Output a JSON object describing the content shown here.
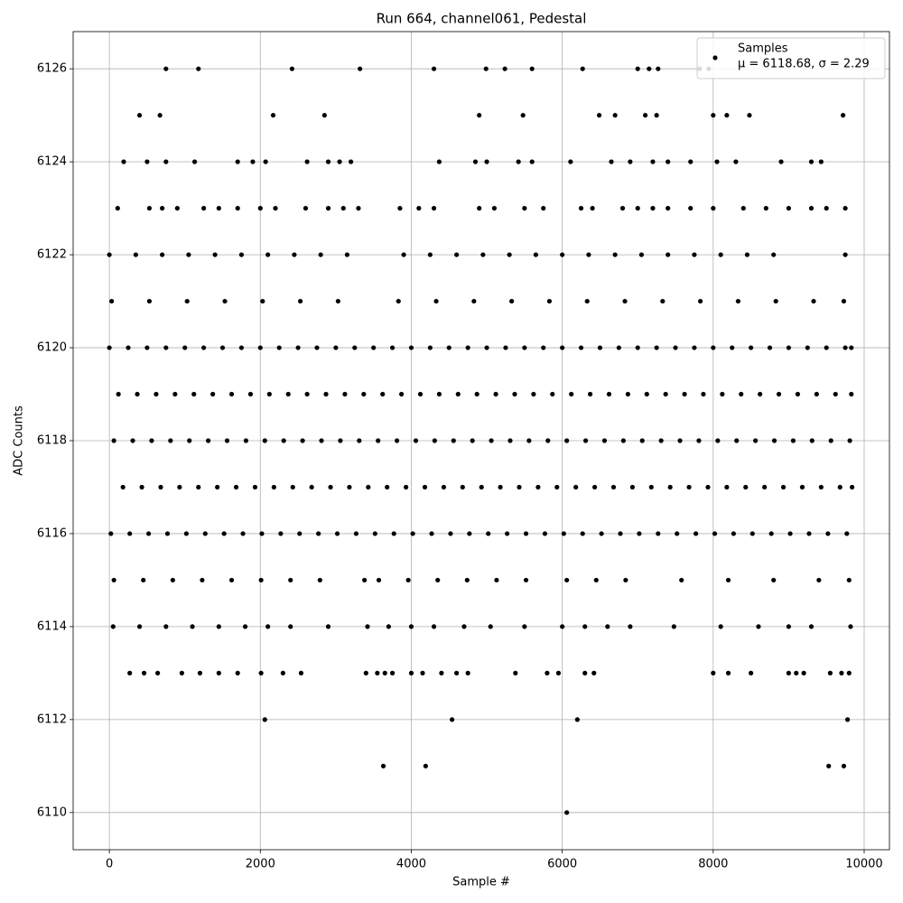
{
  "chart_data": {
    "type": "scatter",
    "title": "Run 664, channel061, Pedestal",
    "x_label": "Sample #",
    "y_label": "ADC Counts",
    "xlim": [
      -480,
      10335
    ],
    "ylim": [
      6109.2,
      6126.8
    ],
    "xticks": [
      0,
      2000,
      4000,
      6000,
      8000,
      10000
    ],
    "yticks": [
      6110,
      6112,
      6114,
      6116,
      6118,
      6120,
      6122,
      6124,
      6126
    ],
    "grid": true,
    "legend_position": "upper right",
    "legend_note": "μ = 6118.68, σ = 2.29",
    "series": [
      {
        "name": "Samples",
        "color": "#000000",
        "x": [
          0,
          250,
          500,
          750,
          1000,
          1250,
          1500,
          1750,
          2000,
          2250,
          2500,
          2750,
          3000,
          3250,
          3500,
          3750,
          4000,
          4250,
          4500,
          4750,
          5000,
          5250,
          5500,
          5750,
          6000,
          6250,
          6500,
          6750,
          7000,
          7250,
          7500,
          7750,
          8000,
          8250,
          8500,
          8750,
          9000,
          9250,
          9500,
          9750,
          9830,
          120,
          370,
          620,
          870,
          1120,
          1370,
          1620,
          1870,
          2120,
          2370,
          2620,
          2870,
          3120,
          3370,
          3620,
          3870,
          4120,
          4370,
          4620,
          4870,
          5120,
          5370,
          5620,
          5870,
          6120,
          6370,
          6620,
          6870,
          7120,
          7370,
          7620,
          7870,
          8120,
          8370,
          8620,
          8870,
          9120,
          9370,
          9620,
          9830,
          60,
          310,
          560,
          810,
          1060,
          1310,
          1560,
          1810,
          2060,
          2310,
          2560,
          2810,
          3060,
          3310,
          3560,
          3810,
          4060,
          4310,
          4560,
          4810,
          5060,
          5310,
          5560,
          5810,
          6060,
          6310,
          6560,
          6810,
          7060,
          7310,
          7560,
          7810,
          8060,
          8310,
          8560,
          8810,
          9060,
          9310,
          9560,
          9810,
          180,
          430,
          680,
          930,
          1180,
          1430,
          1680,
          1930,
          2180,
          2430,
          2680,
          2930,
          3180,
          3430,
          3680,
          3930,
          4180,
          4430,
          4680,
          4930,
          5180,
          5430,
          5680,
          5930,
          6180,
          6430,
          6680,
          6930,
          7180,
          7430,
          7680,
          7930,
          8180,
          8430,
          8680,
          8930,
          9180,
          9430,
          9680,
          9840,
          20,
          270,
          520,
          770,
          1020,
          1270,
          1520,
          1770,
          2020,
          2270,
          2520,
          2770,
          3020,
          3270,
          3520,
          3770,
          4020,
          4270,
          4520,
          4770,
          5020,
          5270,
          5520,
          5770,
          6020,
          6270,
          6520,
          6770,
          7020,
          7270,
          7520,
          7770,
          8020,
          8270,
          8520,
          8770,
          9020,
          9270,
          9520,
          9770,
          30,
          530,
          1030,
          1530,
          2030,
          2530,
          3030,
          3830,
          4330,
          4830,
          5330,
          5830,
          6330,
          6830,
          7330,
          7830,
          8330,
          8830,
          9330,
          9730,
          0,
          350,
          700,
          1050,
          1400,
          1750,
          2100,
          2450,
          2800,
          3150,
          3900,
          4250,
          4600,
          4950,
          5300,
          5650,
          6000,
          6350,
          6700,
          7050,
          7400,
          7750,
          8100,
          8450,
          8800,
          9750,
          60,
          450,
          840,
          1230,
          1620,
          2010,
          2400,
          2790,
          3380,
          3570,
          3960,
          4350,
          4740,
          5130,
          5520,
          6060,
          6450,
          6840,
          7580,
          8200,
          8800,
          9400,
          9800,
          50,
          400,
          750,
          1100,
          1450,
          1800,
          2100,
          2400,
          2900,
          3420,
          3700,
          4000,
          4300,
          4700,
          5050,
          5500,
          6000,
          6300,
          6600,
          6900,
          7480,
          8100,
          8600,
          9000,
          9300,
          9820,
          270,
          460,
          640,
          960,
          1200,
          1450,
          1700,
          2010,
          2300,
          2540,
          3400,
          3550,
          3650,
          3750,
          4000,
          4150,
          4400,
          4600,
          4750,
          5380,
          5800,
          5950,
          6300,
          6420,
          8000,
          8200,
          8500,
          9000,
          9100,
          9200,
          9550,
          9700,
          9800,
          110,
          530,
          700,
          900,
          1250,
          1450,
          1700,
          2000,
          2200,
          2600,
          2900,
          3100,
          3300,
          3850,
          4100,
          4300,
          4900,
          5100,
          5500,
          5750,
          6250,
          6400,
          6800,
          7000,
          7200,
          7400,
          7700,
          8000,
          8400,
          8700,
          9000,
          9300,
          9500,
          9750,
          190,
          500,
          750,
          1130,
          1700,
          1900,
          2070,
          2620,
          2900,
          3050,
          3200,
          4370,
          4850,
          5000,
          5420,
          5600,
          6110,
          6650,
          6900,
          7200,
          7400,
          7700,
          8050,
          8300,
          8900,
          9300,
          9430,
          400,
          670,
          2170,
          2850,
          4900,
          5480,
          6490,
          6700,
          7100,
          7250,
          8000,
          8180,
          8480,
          9720,
          750,
          1180,
          2420,
          3320,
          4300,
          4990,
          5240,
          5600,
          6270,
          7000,
          7150,
          7270,
          7820,
          7940,
          2060,
          4540,
          6200,
          9780,
          3630,
          4190,
          9530,
          9730,
          6060
        ],
        "values": [
          6120,
          6120,
          6120,
          6120,
          6120,
          6120,
          6120,
          6120,
          6120,
          6120,
          6120,
          6120,
          6120,
          6120,
          6120,
          6120,
          6120,
          6120,
          6120,
          6120,
          6120,
          6120,
          6120,
          6120,
          6120,
          6120,
          6120,
          6120,
          6120,
          6120,
          6120,
          6120,
          6120,
          6120,
          6120,
          6120,
          6120,
          6120,
          6120,
          6120,
          6120,
          6119,
          6119,
          6119,
          6119,
          6119,
          6119,
          6119,
          6119,
          6119,
          6119,
          6119,
          6119,
          6119,
          6119,
          6119,
          6119,
          6119,
          6119,
          6119,
          6119,
          6119,
          6119,
          6119,
          6119,
          6119,
          6119,
          6119,
          6119,
          6119,
          6119,
          6119,
          6119,
          6119,
          6119,
          6119,
          6119,
          6119,
          6119,
          6119,
          6119,
          6118,
          6118,
          6118,
          6118,
          6118,
          6118,
          6118,
          6118,
          6118,
          6118,
          6118,
          6118,
          6118,
          6118,
          6118,
          6118,
          6118,
          6118,
          6118,
          6118,
          6118,
          6118,
          6118,
          6118,
          6118,
          6118,
          6118,
          6118,
          6118,
          6118,
          6118,
          6118,
          6118,
          6118,
          6118,
          6118,
          6118,
          6118,
          6118,
          6118,
          6117,
          6117,
          6117,
          6117,
          6117,
          6117,
          6117,
          6117,
          6117,
          6117,
          6117,
          6117,
          6117,
          6117,
          6117,
          6117,
          6117,
          6117,
          6117,
          6117,
          6117,
          6117,
          6117,
          6117,
          6117,
          6117,
          6117,
          6117,
          6117,
          6117,
          6117,
          6117,
          6117,
          6117,
          6117,
          6117,
          6117,
          6117,
          6117,
          6117,
          6116,
          6116,
          6116,
          6116,
          6116,
          6116,
          6116,
          6116,
          6116,
          6116,
          6116,
          6116,
          6116,
          6116,
          6116,
          6116,
          6116,
          6116,
          6116,
          6116,
          6116,
          6116,
          6116,
          6116,
          6116,
          6116,
          6116,
          6116,
          6116,
          6116,
          6116,
          6116,
          6116,
          6116,
          6116,
          6116,
          6116,
          6116,
          6116,
          6116,
          6121,
          6121,
          6121,
          6121,
          6121,
          6121,
          6121,
          6121,
          6121,
          6121,
          6121,
          6121,
          6121,
          6121,
          6121,
          6121,
          6121,
          6121,
          6121,
          6121,
          6122,
          6122,
          6122,
          6122,
          6122,
          6122,
          6122,
          6122,
          6122,
          6122,
          6122,
          6122,
          6122,
          6122,
          6122,
          6122,
          6122,
          6122,
          6122,
          6122,
          6122,
          6122,
          6122,
          6122,
          6122,
          6122,
          6115,
          6115,
          6115,
          6115,
          6115,
          6115,
          6115,
          6115,
          6115,
          6115,
          6115,
          6115,
          6115,
          6115,
          6115,
          6115,
          6115,
          6115,
          6115,
          6115,
          6115,
          6115,
          6115,
          6114,
          6114,
          6114,
          6114,
          6114,
          6114,
          6114,
          6114,
          6114,
          6114,
          6114,
          6114,
          6114,
          6114,
          6114,
          6114,
          6114,
          6114,
          6114,
          6114,
          6114,
          6114,
          6114,
          6114,
          6114,
          6114,
          6113,
          6113,
          6113,
          6113,
          6113,
          6113,
          6113,
          6113,
          6113,
          6113,
          6113,
          6113,
          6113,
          6113,
          6113,
          6113,
          6113,
          6113,
          6113,
          6113,
          6113,
          6113,
          6113,
          6113,
          6113,
          6113,
          6113,
          6113,
          6113,
          6113,
          6113,
          6113,
          6113,
          6123,
          6123,
          6123,
          6123,
          6123,
          6123,
          6123,
          6123,
          6123,
          6123,
          6123,
          6123,
          6123,
          6123,
          6123,
          6123,
          6123,
          6123,
          6123,
          6123,
          6123,
          6123,
          6123,
          6123,
          6123,
          6123,
          6123,
          6123,
          6123,
          6123,
          6123,
          6123,
          6123,
          6123,
          6124,
          6124,
          6124,
          6124,
          6124,
          6124,
          6124,
          6124,
          6124,
          6124,
          6124,
          6124,
          6124,
          6124,
          6124,
          6124,
          6124,
          6124,
          6124,
          6124,
          6124,
          6124,
          6124,
          6124,
          6124,
          6124,
          6124,
          6125,
          6125,
          6125,
          6125,
          6125,
          6125,
          6125,
          6125,
          6125,
          6125,
          6125,
          6125,
          6125,
          6125,
          6126,
          6126,
          6126,
          6126,
          6126,
          6126,
          6126,
          6126,
          6126,
          6126,
          6126,
          6126,
          6126,
          6126,
          6112,
          6112,
          6112,
          6112,
          6111,
          6111,
          6111,
          6111,
          6110
        ]
      }
    ]
  }
}
